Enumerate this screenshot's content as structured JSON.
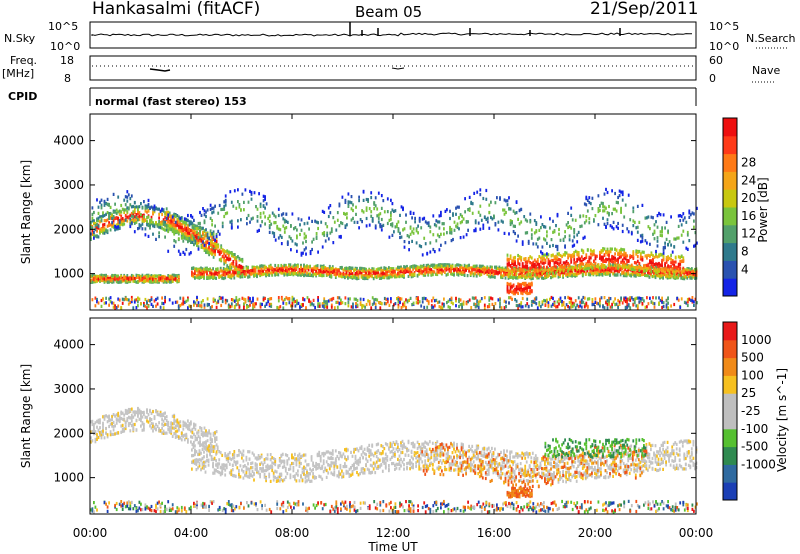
{
  "header": {
    "station": "Hankasalmi (fitACF)",
    "beam": "Beam 05",
    "date": "21/Sep/2011"
  },
  "status_panels": {
    "nsky_label": "N.Sky",
    "nsearch_label": "N.Search",
    "nsky_ticks": [
      "10^5",
      "10^0"
    ],
    "nsearch_ticks": [
      "10^5",
      "10^0"
    ],
    "freq_label": "Freq.",
    "freq_unit": "[MHz]",
    "freq_ticks": [
      "18",
      "8"
    ],
    "nave_label": "Nave",
    "nave_ticks": [
      "60",
      "0"
    ],
    "cpid_label": "CPID",
    "cpid_text": "normal (fast stereo) 153"
  },
  "chart_data": [
    {
      "type": "heatmap",
      "title": "",
      "xlabel": "",
      "ylabel": "Slant Range [km]",
      "x_range_hours": [
        0,
        24
      ],
      "ylim": [
        180,
        4600
      ],
      "yticks": [
        1000,
        2000,
        3000,
        4000
      ],
      "colorbar": {
        "label": "Power [dB]",
        "ticks": [
          "4",
          "8",
          "12",
          "16",
          "20",
          "24",
          "28"
        ],
        "colors": [
          "#1424e6",
          "#2a52b0",
          "#2f7a8c",
          "#52a06a",
          "#7ac43c",
          "#c8c810",
          "#f4a518",
          "#ff7a16",
          "#ff3a18",
          "#ee0f0f"
        ]
      },
      "features": [
        {
          "name": "main echo band",
          "t_start_h": 4.0,
          "t_end_h": 24.0,
          "range_km": [
            950,
            1200
          ]
        },
        {
          "name": "early band",
          "t_start_h": 0.0,
          "t_end_h": 3.5,
          "range_km": [
            850,
            1000
          ]
        },
        {
          "name": "upper arc",
          "t_start_h": 0.0,
          "t_end_h": 5.0,
          "range_km": [
            1800,
            2600
          ]
        },
        {
          "name": "descending band",
          "t_start_h": 3.0,
          "t_end_h": 6.0,
          "range_km": [
            1200,
            2300
          ]
        },
        {
          "name": "late band",
          "t_start_h": 16.5,
          "t_end_h": 23.5,
          "range_km": [
            1050,
            1600
          ]
        },
        {
          "name": "patch",
          "t_start_h": 16.5,
          "t_end_h": 17.5,
          "range_km": [
            550,
            850
          ]
        }
      ]
    },
    {
      "type": "heatmap",
      "title": "",
      "xlabel": "Time UT",
      "ylabel": "Slant Range [km]",
      "x_range_hours": [
        0,
        24
      ],
      "ylim": [
        180,
        4600
      ],
      "yticks": [
        1000,
        2000,
        3000,
        4000
      ],
      "xticks": [
        "00:00",
        "04:00",
        "08:00",
        "12:00",
        "16:00",
        "20:00",
        "00:00"
      ],
      "colorbar": {
        "label": "Velocity [m s^-1]",
        "ticks": [
          "1000",
          "500",
          "100",
          "25",
          "-25",
          "-100",
          "-500",
          "-1000"
        ],
        "colors": [
          "#1b3fb5",
          "#2f6aa0",
          "#2f8a50",
          "#55c030",
          "#bfbfbf",
          "#bfbfbf",
          "#f6c020",
          "#f08a18",
          "#ef5418",
          "#e81818"
        ]
      },
      "features": [
        {
          "name": "ground scatter band",
          "t_start_h": 0.0,
          "t_end_h": 24.0,
          "range_km": [
            900,
            2600
          ]
        },
        {
          "name": "orange irregularities",
          "t_start_h": 13.0,
          "t_end_h": 22.0,
          "range_km": [
            600,
            2000
          ]
        }
      ]
    }
  ]
}
